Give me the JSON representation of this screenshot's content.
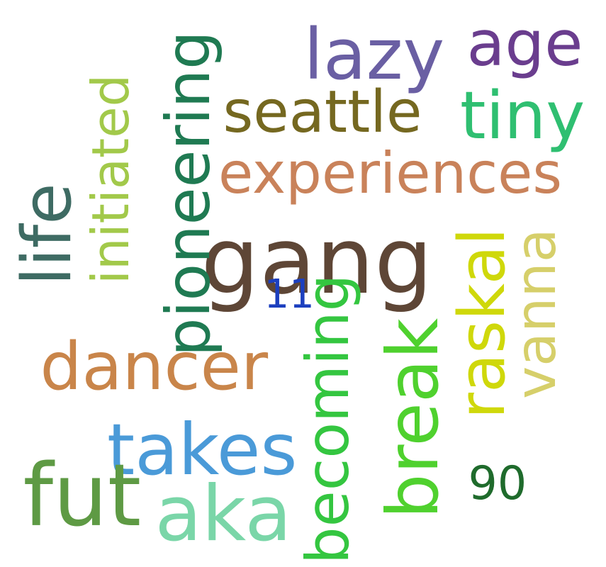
{
  "words": [
    {
      "text": "gang",
      "color": "#5e4636",
      "orientation": "horizontal"
    },
    {
      "text": "experiences",
      "color": "#c9825a",
      "orientation": "horizontal"
    },
    {
      "text": "seattle",
      "color": "#756820",
      "orientation": "horizontal"
    },
    {
      "text": "lazy",
      "color": "#6a5fa3",
      "orientation": "horizontal"
    },
    {
      "text": "age",
      "color": "#6a3d8e",
      "orientation": "horizontal"
    },
    {
      "text": "tiny",
      "color": "#2fbf71",
      "orientation": "horizontal"
    },
    {
      "text": "pioneering",
      "color": "#1f7a52",
      "orientation": "vertical"
    },
    {
      "text": "initiated",
      "color": "#a2c94a",
      "orientation": "vertical"
    },
    {
      "text": "life",
      "color": "#3e6b63",
      "orientation": "vertical"
    },
    {
      "text": "11",
      "color": "#1c3fbf",
      "orientation": "horizontal"
    },
    {
      "text": "dancer",
      "color": "#c9854a",
      "orientation": "horizontal"
    },
    {
      "text": "takes",
      "color": "#4a9ad8",
      "orientation": "horizontal"
    },
    {
      "text": "fut",
      "color": "#5e9a44",
      "orientation": "horizontal"
    },
    {
      "text": "aka",
      "color": "#7ad6a8",
      "orientation": "horizontal"
    },
    {
      "text": "becoming",
      "color": "#34c640",
      "orientation": "vertical"
    },
    {
      "text": "break",
      "color": "#4fd12e",
      "orientation": "vertical"
    },
    {
      "text": "raskal",
      "color": "#cfd80a",
      "orientation": "vertical"
    },
    {
      "text": "vanna",
      "color": "#d6cf6a",
      "orientation": "vertical"
    },
    {
      "text": "90",
      "color": "#1f6b2c",
      "orientation": "horizontal"
    }
  ]
}
